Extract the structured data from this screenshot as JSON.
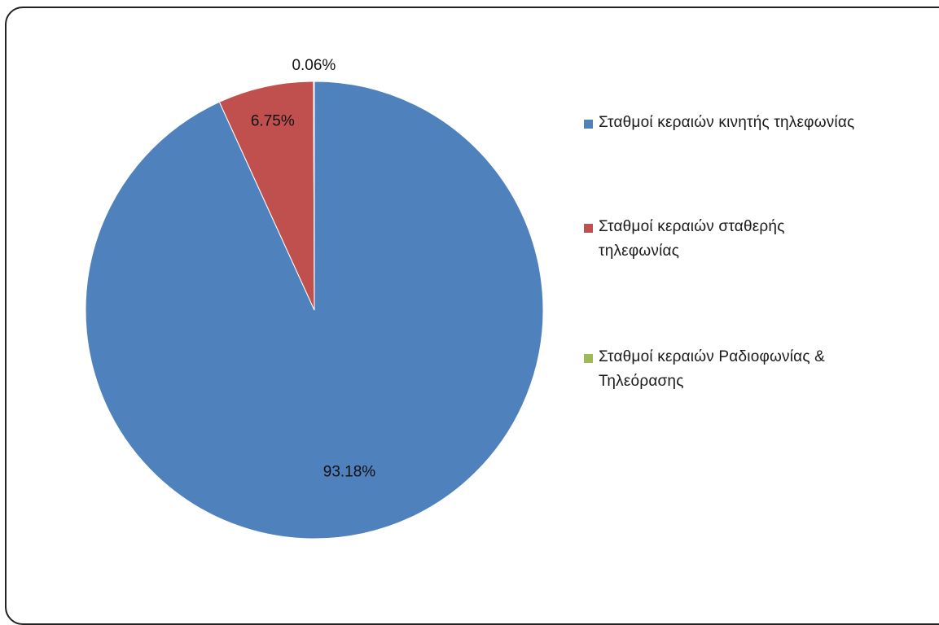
{
  "chart_data": {
    "type": "pie",
    "title": "",
    "start_angle_deg": 0,
    "direction": "clockwise",
    "slices": [
      {
        "label": "Σταθμοί κεραιών κινητής τηλεφωνίας",
        "value": 93.18,
        "display": "93.18%",
        "color": "#4F81BD"
      },
      {
        "label": "Σταθμοί κεραιών σταθερής τηλεφωνίας",
        "value": 6.75,
        "display": "6.75%",
        "color": "#C0504D"
      },
      {
        "label": "Σταθμοί κεραιών Ραδιοφωνίας & Τηλεόρασης",
        "value": 0.06,
        "display": "0.06%",
        "color": "#9BBB59"
      }
    ],
    "legend_position": "right"
  }
}
